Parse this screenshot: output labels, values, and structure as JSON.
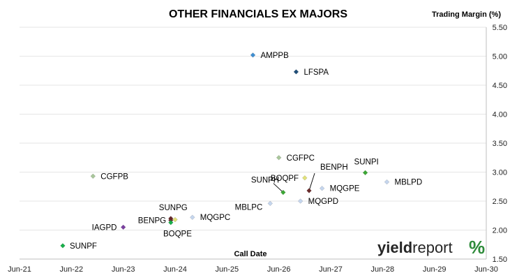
{
  "chart_data": {
    "type": "scatter",
    "title": "OTHER FINANCIALS EX MAJORS",
    "ylabel": "Trading Margin (%)",
    "xlabel": "Call Date",
    "x_ticks": [
      "Jun-21",
      "Jun-22",
      "Jun-23",
      "Jun-24",
      "Jun-25",
      "Jun-26",
      "Jun-27",
      "Jun-28",
      "Jun-29",
      "Jun-30"
    ],
    "y_ticks": [
      "1.50",
      "2.00",
      "2.50",
      "3.00",
      "3.50",
      "4.00",
      "4.50",
      "5.00",
      "5.50"
    ],
    "xlim": [
      "2021-06",
      "2030-06"
    ],
    "ylim": [
      1.5,
      5.5
    ],
    "grid": "horizontal",
    "legend": "none",
    "points": [
      {
        "name": "AMPPB",
        "x": "2025-12",
        "y": 5.02,
        "color": "#3f8fd2"
      },
      {
        "name": "LFSPA",
        "x": "2026-10",
        "y": 4.73,
        "color": "#1f4e79"
      },
      {
        "name": "CGFPC",
        "x": "2026-06",
        "y": 3.25,
        "color": "#a9c79b"
      },
      {
        "name": "CGFPB",
        "x": "2022-11",
        "y": 2.93,
        "color": "#a9c79b"
      },
      {
        "name": "BENPH",
        "x": "2027-01",
        "y": 2.68,
        "color": "#6b2b2b"
      },
      {
        "name": "SUNPI",
        "x": "2028-02",
        "y": 2.99,
        "color": "#3ca835"
      },
      {
        "name": "BOQPF",
        "x": "2026-12",
        "y": 2.9,
        "color": "#e2e27a"
      },
      {
        "name": "MBLPD",
        "x": "2028-07",
        "y": 2.83,
        "color": "#c5d6ee"
      },
      {
        "name": "MQGPE",
        "x": "2027-04",
        "y": 2.72,
        "color": "#c5d6ee"
      },
      {
        "name": "SUNPH",
        "x": "2026-07",
        "y": 2.65,
        "color": "#3ca835"
      },
      {
        "name": "MQGPD",
        "x": "2026-11",
        "y": 2.5,
        "color": "#c5d6ee"
      },
      {
        "name": "MBLPC",
        "x": "2026-04",
        "y": 2.46,
        "color": "#c5d6ee"
      },
      {
        "name": "MQGPC",
        "x": "2024-10",
        "y": 2.22,
        "color": "#c5d6ee"
      },
      {
        "name": "SUNPG",
        "x": "2024-05",
        "y": 2.2,
        "color": "#6b2b2b"
      },
      {
        "name": "BENPG",
        "x": "2024-05",
        "y": 2.17,
        "color": "#6b2b2b"
      },
      {
        "name": "BOQPE",
        "x": "2024-06",
        "y": 2.18,
        "color": "#e2e27a"
      },
      {
        "name": "SUNPG",
        "x": "2024-05",
        "y": 2.13,
        "color": "#18b04a"
      },
      {
        "name": "IAGPD",
        "x": "2023-06",
        "y": 2.05,
        "color": "#7a3fa0"
      },
      {
        "name": "SUNPF",
        "x": "2022-04",
        "y": 1.73,
        "color": "#18b04a"
      }
    ],
    "point_labels": [
      {
        "text": "AMPPB",
        "for": 0
      },
      {
        "text": "LFSPA",
        "for": 1
      },
      {
        "text": "CGFPC",
        "for": 2
      },
      {
        "text": "CGFPB",
        "for": 3
      },
      {
        "text": "BENPH",
        "for": 4
      },
      {
        "text": "SUNPI",
        "for": 5
      },
      {
        "text": "BOQPF",
        "for": 6
      },
      {
        "text": "MBLPD",
        "for": 7
      },
      {
        "text": "MQGPE",
        "for": 8
      },
      {
        "text": "SUNPH",
        "for": 9
      },
      {
        "text": "MQGPD",
        "for": 10
      },
      {
        "text": "MBLPC",
        "for": 11
      },
      {
        "text": "MQGPC",
        "for": 12
      },
      {
        "text": "SUNPG",
        "for": 13
      },
      {
        "text": "BENPG",
        "for": 14
      },
      {
        "text": "BOQPE",
        "for": 15
      },
      {
        "text": "IAGPD",
        "for": 17
      },
      {
        "text": "SUNPF",
        "for": 18
      }
    ]
  },
  "logo": {
    "word_a": "yield",
    "word_b": "report",
    "pct": "%"
  }
}
